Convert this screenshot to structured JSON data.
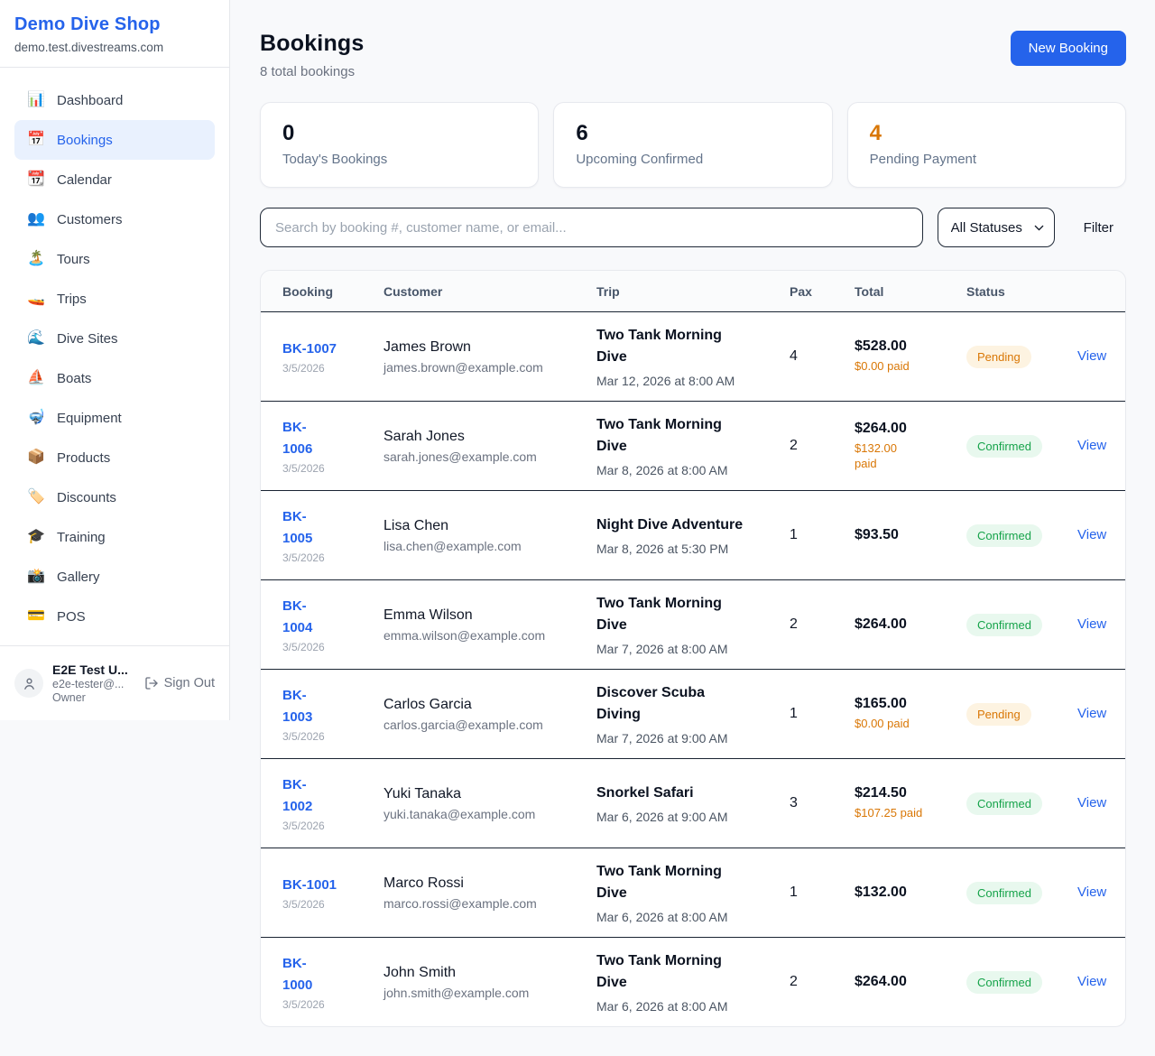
{
  "sidebar": {
    "brand": "Demo Dive Shop",
    "domain": "demo.test.divestreams.com",
    "items": [
      {
        "label": "Dashboard",
        "icon": "📊",
        "icon_name": "dashboard-icon",
        "active": false
      },
      {
        "label": "Bookings",
        "icon": "📅",
        "icon_name": "bookings-icon",
        "active": true
      },
      {
        "label": "Calendar",
        "icon": "📆",
        "icon_name": "calendar-icon",
        "active": false
      },
      {
        "label": "Customers",
        "icon": "👥",
        "icon_name": "customers-icon",
        "active": false
      },
      {
        "label": "Tours",
        "icon": "🏝️",
        "icon_name": "tours-icon",
        "active": false
      },
      {
        "label": "Trips",
        "icon": "🚤",
        "icon_name": "trips-icon",
        "active": false
      },
      {
        "label": "Dive Sites",
        "icon": "🌊",
        "icon_name": "dive-sites-icon",
        "active": false
      },
      {
        "label": "Boats",
        "icon": "⛵",
        "icon_name": "boats-icon",
        "active": false
      },
      {
        "label": "Equipment",
        "icon": "🤿",
        "icon_name": "equipment-icon",
        "active": false
      },
      {
        "label": "Products",
        "icon": "📦",
        "icon_name": "products-icon",
        "active": false
      },
      {
        "label": "Discounts",
        "icon": "🏷️",
        "icon_name": "discounts-icon",
        "active": false
      },
      {
        "label": "Training",
        "icon": "🎓",
        "icon_name": "training-icon",
        "active": false
      },
      {
        "label": "Gallery",
        "icon": "📸",
        "icon_name": "gallery-icon",
        "active": false
      },
      {
        "label": "POS",
        "icon": "💳",
        "icon_name": "pos-icon",
        "active": false
      }
    ],
    "user": {
      "name": "E2E Test U...",
      "email": "e2e-tester@...",
      "role": "Owner",
      "sign_out_label": "Sign Out"
    }
  },
  "header": {
    "title": "Bookings",
    "subtitle": "8 total bookings",
    "new_booking_label": "New Booking"
  },
  "stats": [
    {
      "value": "0",
      "label": "Today's Bookings",
      "accent": false
    },
    {
      "value": "6",
      "label": "Upcoming Confirmed",
      "accent": false
    },
    {
      "value": "4",
      "label": "Pending Payment",
      "accent": true
    }
  ],
  "controls": {
    "search_placeholder": "Search by booking #, customer name, or email...",
    "status_filter_value": "All Statuses",
    "filter_label": "Filter"
  },
  "table": {
    "columns": [
      "Booking",
      "Customer",
      "Trip",
      "Pax",
      "Total",
      "Status"
    ],
    "view_label": "View",
    "rows": [
      {
        "id": "BK-1007",
        "id_wrap": false,
        "date": "3/5/2026",
        "customer": "James Brown",
        "email": "james.brown@example.com",
        "trip": "Two Tank Morning Dive",
        "trip_time": "Mar 12, 2026 at 8:00 AM",
        "pax": "4",
        "total": "$528.00",
        "paid": "$0.00 paid",
        "paid_wrap": false,
        "status": "Pending"
      },
      {
        "id": "BK-1006",
        "id_wrap": true,
        "date": "3/5/2026",
        "customer": "Sarah Jones",
        "email": "sarah.jones@example.com",
        "trip": "Two Tank Morning Dive",
        "trip_time": "Mar 8, 2026 at 8:00 AM",
        "pax": "2",
        "total": "$264.00",
        "paid": "$132.00 paid",
        "paid_wrap": true,
        "status": "Confirmed"
      },
      {
        "id": "BK-1005",
        "id_wrap": true,
        "date": "3/5/2026",
        "customer": "Lisa Chen",
        "email": "lisa.chen@example.com",
        "trip": "Night Dive Adventure",
        "trip_time": "Mar 8, 2026 at 5:30 PM",
        "pax": "1",
        "total": "$93.50",
        "paid": null,
        "paid_wrap": false,
        "status": "Confirmed"
      },
      {
        "id": "BK-1004",
        "id_wrap": true,
        "date": "3/5/2026",
        "customer": "Emma Wilson",
        "email": "emma.wilson@example.com",
        "trip": "Two Tank Morning Dive",
        "trip_time": "Mar 7, 2026 at 8:00 AM",
        "pax": "2",
        "total": "$264.00",
        "paid": null,
        "paid_wrap": false,
        "status": "Confirmed"
      },
      {
        "id": "BK-1003",
        "id_wrap": true,
        "date": "3/5/2026",
        "customer": "Carlos Garcia",
        "email": "carlos.garcia@example.com",
        "trip": "Discover Scuba Diving",
        "trip_time": "Mar 7, 2026 at 9:00 AM",
        "pax": "1",
        "total": "$165.00",
        "paid": "$0.00 paid",
        "paid_wrap": false,
        "status": "Pending"
      },
      {
        "id": "BK-1002",
        "id_wrap": true,
        "date": "3/5/2026",
        "customer": "Yuki Tanaka",
        "email": "yuki.tanaka@example.com",
        "trip": "Snorkel Safari",
        "trip_time": "Mar 6, 2026 at 9:00 AM",
        "pax": "3",
        "total": "$214.50",
        "paid": "$107.25 paid",
        "paid_wrap": false,
        "status": "Confirmed"
      },
      {
        "id": "BK-1001",
        "id_wrap": false,
        "date": "3/5/2026",
        "customer": "Marco Rossi",
        "email": "marco.rossi@example.com",
        "trip": "Two Tank Morning Dive",
        "trip_time": "Mar 6, 2026 at 8:00 AM",
        "pax": "1",
        "total": "$132.00",
        "paid": null,
        "paid_wrap": false,
        "status": "Confirmed"
      },
      {
        "id": "BK-1000",
        "id_wrap": true,
        "date": "3/5/2026",
        "customer": "John Smith",
        "email": "john.smith@example.com",
        "trip": "Two Tank Morning Dive",
        "trip_time": "Mar 6, 2026 at 8:00 AM",
        "pax": "2",
        "total": "$264.00",
        "paid": null,
        "paid_wrap": false,
        "status": "Confirmed"
      }
    ]
  },
  "colors": {
    "accent_blue": "#2563eb",
    "orange": "#d97706",
    "pending_bg": "#fdf3e1",
    "confirmed_green": "#16a34a",
    "confirmed_bg": "#e8f8ee"
  }
}
